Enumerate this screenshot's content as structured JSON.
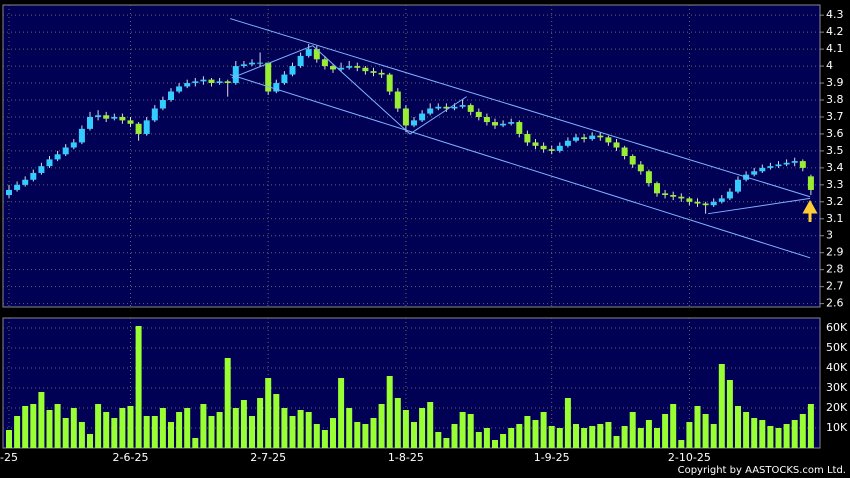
{
  "chart_data": {
    "type": "candlestick",
    "copyright": "Copyright by AASTOCKS.com Ltd.",
    "categories": [
      "-25",
      null,
      null,
      null,
      null,
      null,
      null,
      null,
      null,
      null,
      null,
      null,
      null,
      null,
      null,
      "2-6-25",
      null,
      null,
      null,
      null,
      null,
      null,
      null,
      null,
      null,
      null,
      null,
      null,
      null,
      null,
      null,
      null,
      "2-7-25",
      null,
      null,
      null,
      null,
      null,
      null,
      null,
      null,
      null,
      null,
      null,
      null,
      null,
      null,
      null,
      null,
      "1-8-25",
      null,
      null,
      null,
      null,
      null,
      null,
      null,
      null,
      null,
      null,
      null,
      null,
      null,
      null,
      null,
      null,
      null,
      "1-9-25",
      null,
      null,
      null,
      null,
      null,
      null,
      null,
      null,
      null,
      null,
      null,
      null,
      null,
      null,
      null,
      null,
      "2-10-25",
      null,
      null,
      null,
      null,
      null,
      null,
      null,
      null,
      null,
      null,
      null,
      null,
      null,
      null,
      null
    ],
    "open": [
      3.24,
      3.27,
      3.3,
      3.33,
      3.37,
      3.41,
      3.45,
      3.48,
      3.52,
      3.55,
      3.63,
      3.7,
      3.71,
      3.69,
      3.7,
      3.68,
      3.66,
      3.6,
      3.68,
      3.75,
      3.8,
      3.85,
      3.88,
      3.9,
      3.91,
      3.92,
      3.9,
      3.91,
      3.9,
      4.0,
      4.01,
      4.02,
      4.02,
      3.85,
      3.9,
      3.95,
      4.0,
      4.06,
      4.1,
      4.04,
      4.0,
      3.98,
      3.99,
      4.0,
      3.99,
      3.97,
      3.96,
      3.95,
      3.85,
      3.75,
      3.65,
      3.68,
      3.72,
      3.75,
      3.76,
      3.75,
      3.76,
      3.77,
      3.73,
      3.7,
      3.67,
      3.65,
      3.66,
      3.67,
      3.6,
      3.55,
      3.53,
      3.51,
      3.5,
      3.53,
      3.56,
      3.58,
      3.57,
      3.59,
      3.58,
      3.55,
      3.52,
      3.47,
      3.42,
      3.38,
      3.31,
      3.25,
      3.24,
      3.23,
      3.22,
      3.2,
      3.19,
      3.18,
      3.2,
      3.22,
      3.26,
      3.33,
      3.36,
      3.38,
      3.4,
      3.41,
      3.42,
      3.43,
      3.44,
      3.35
    ],
    "high": [
      3.3,
      3.32,
      3.35,
      3.39,
      3.43,
      3.47,
      3.5,
      3.54,
      3.57,
      3.65,
      3.73,
      3.74,
      3.73,
      3.72,
      3.72,
      3.7,
      3.67,
      3.7,
      3.77,
      3.82,
      3.87,
      3.9,
      3.92,
      3.93,
      3.94,
      3.93,
      3.93,
      3.92,
      4.03,
      4.03,
      4.04,
      4.08,
      4.02,
      3.92,
      3.97,
      4.02,
      4.08,
      4.13,
      4.12,
      4.06,
      4.01,
      4.02,
      4.03,
      4.02,
      4.0,
      3.99,
      3.98,
      3.96,
      3.87,
      3.77,
      3.7,
      3.74,
      3.78,
      3.78,
      3.78,
      3.78,
      3.8,
      3.78,
      3.75,
      3.72,
      3.69,
      3.68,
      3.69,
      3.68,
      3.62,
      3.57,
      3.55,
      3.53,
      3.55,
      3.58,
      3.6,
      3.6,
      3.61,
      3.61,
      3.59,
      3.57,
      3.53,
      3.48,
      3.44,
      3.39,
      3.32,
      3.27,
      3.26,
      3.25,
      3.23,
      3.22,
      3.2,
      3.22,
      3.24,
      3.28,
      3.35,
      3.38,
      3.4,
      3.42,
      3.43,
      3.44,
      3.45,
      3.46,
      3.45,
      3.36
    ],
    "low": [
      3.22,
      3.26,
      3.29,
      3.32,
      3.36,
      3.4,
      3.44,
      3.47,
      3.51,
      3.54,
      3.62,
      3.68,
      3.67,
      3.68,
      3.66,
      3.64,
      3.56,
      3.59,
      3.67,
      3.74,
      3.79,
      3.84,
      3.87,
      3.88,
      3.89,
      3.88,
      3.89,
      3.82,
      3.89,
      3.99,
      4.0,
      4.0,
      3.83,
      3.84,
      3.89,
      3.94,
      3.99,
      4.05,
      4.02,
      3.98,
      3.96,
      3.97,
      3.98,
      3.97,
      3.95,
      3.94,
      3.93,
      3.83,
      3.73,
      3.61,
      3.64,
      3.67,
      3.71,
      3.74,
      3.73,
      3.74,
      3.75,
      3.71,
      3.68,
      3.65,
      3.63,
      3.64,
      3.65,
      3.58,
      3.53,
      3.51,
      3.49,
      3.48,
      3.49,
      3.52,
      3.55,
      3.55,
      3.56,
      3.56,
      3.53,
      3.5,
      3.45,
      3.4,
      3.36,
      3.29,
      3.23,
      3.22,
      3.21,
      3.2,
      3.18,
      3.17,
      3.13,
      3.17,
      3.19,
      3.21,
      3.25,
      3.32,
      3.35,
      3.37,
      3.39,
      3.4,
      3.41,
      3.41,
      3.38,
      3.24
    ],
    "close": [
      3.27,
      3.3,
      3.33,
      3.37,
      3.41,
      3.45,
      3.48,
      3.52,
      3.55,
      3.63,
      3.7,
      3.71,
      3.69,
      3.7,
      3.68,
      3.66,
      3.6,
      3.68,
      3.75,
      3.8,
      3.85,
      3.88,
      3.9,
      3.91,
      3.92,
      3.9,
      3.91,
      3.9,
      4.0,
      4.01,
      4.02,
      4.02,
      3.85,
      3.9,
      3.95,
      4.0,
      4.06,
      4.1,
      4.04,
      4.0,
      3.98,
      3.99,
      4.0,
      3.99,
      3.97,
      3.96,
      3.95,
      3.85,
      3.75,
      3.65,
      3.68,
      3.72,
      3.75,
      3.76,
      3.75,
      3.76,
      3.77,
      3.73,
      3.7,
      3.67,
      3.65,
      3.66,
      3.67,
      3.6,
      3.55,
      3.53,
      3.51,
      3.5,
      3.53,
      3.56,
      3.58,
      3.57,
      3.59,
      3.58,
      3.55,
      3.52,
      3.47,
      3.42,
      3.38,
      3.31,
      3.25,
      3.24,
      3.23,
      3.22,
      3.2,
      3.19,
      3.18,
      3.2,
      3.22,
      3.26,
      3.33,
      3.36,
      3.38,
      3.4,
      3.41,
      3.42,
      3.43,
      3.44,
      3.4,
      3.27
    ],
    "volume": [
      9000,
      16000,
      21000,
      22000,
      28000,
      19000,
      22000,
      15000,
      20000,
      13000,
      7000,
      22000,
      18000,
      15000,
      20000,
      21000,
      61000,
      16000,
      16000,
      20000,
      13000,
      18000,
      20000,
      5000,
      22000,
      16000,
      18000,
      45000,
      20000,
      24000,
      16000,
      25000,
      35000,
      27000,
      20000,
      16000,
      19000,
      18000,
      12000,
      9000,
      15000,
      35000,
      20000,
      13000,
      12000,
      15000,
      22000,
      36000,
      25000,
      19000,
      13000,
      20000,
      23000,
      8000,
      5000,
      12000,
      18000,
      17000,
      8000,
      10000,
      4000,
      7000,
      10000,
      12000,
      16000,
      14000,
      18000,
      11000,
      10000,
      25000,
      12000,
      10000,
      11000,
      12000,
      13000,
      6000,
      11000,
      18000,
      10000,
      14000,
      10000,
      17000,
      22000,
      4000,
      13000,
      21000,
      17000,
      12000,
      42000,
      34000,
      21000,
      18000,
      15000,
      14000,
      11000,
      10000,
      12000,
      14000,
      17000,
      22000
    ],
    "up_color": "#33ccff",
    "down_color": "#99ee33",
    "volume_color": "#99ff33",
    "ylim": [
      2.58,
      4.36
    ],
    "yticks": [
      2.6,
      2.7,
      2.8,
      2.9,
      3,
      3.1,
      3.2,
      3.3,
      3.4,
      3.5,
      3.6,
      3.7,
      3.8,
      3.9,
      4,
      4.1,
      4.2,
      4.3
    ],
    "volume_ylim": [
      0,
      65000
    ],
    "volume_yticks": [
      {
        "value": 10000,
        "label": "10K"
      },
      {
        "value": 20000,
        "label": "20K"
      },
      {
        "value": 30000,
        "label": "30K"
      },
      {
        "value": 40000,
        "label": "40K"
      },
      {
        "value": 50000,
        "label": "50K"
      },
      {
        "value": 60000,
        "label": "60K"
      }
    ],
    "trendline_color": "#7fb2ff",
    "trendlines": [
      {
        "x": [
          27.3,
          98.9
        ],
        "y": [
          4.28,
          3.23
        ]
      },
      {
        "x": [
          27.3,
          98.9
        ],
        "y": [
          3.95,
          2.87
        ]
      },
      {
        "x": [
          27.5,
          37.5,
          49.5,
          56.5
        ],
        "y": [
          3.93,
          4.12,
          3.6,
          3.82
        ]
      },
      {
        "x": [
          86.3,
          98.9
        ],
        "y": [
          3.13,
          3.22
        ]
      }
    ],
    "grid": true
  }
}
